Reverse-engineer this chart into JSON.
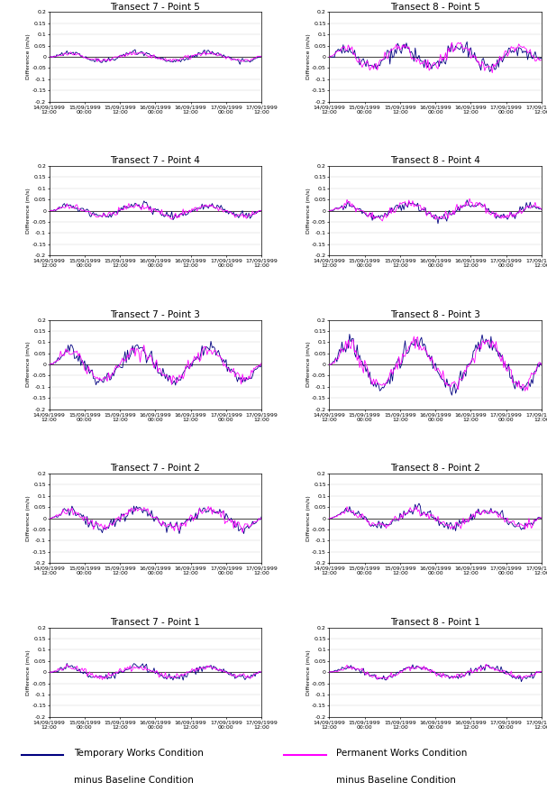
{
  "titles": [
    [
      "Transect 7 - Point 5",
      "Transect 8 - Point 5"
    ],
    [
      "Transect 7 - Point 4",
      "Transect 8 - Point 4"
    ],
    [
      "Transect 7 - Point 3",
      "Transect 8 - Point 3"
    ],
    [
      "Transect 7 - Point 2",
      "Transect 8 - Point 2"
    ],
    [
      "Transect 7 - Point 1",
      "Transect 8 - Point 1"
    ]
  ],
  "ylims": [
    [
      [
        -0.2,
        0.2
      ],
      [
        -0.2,
        0.2
      ]
    ],
    [
      [
        -0.2,
        0.2
      ],
      [
        -0.2,
        0.2
      ]
    ],
    [
      [
        -0.2,
        0.2
      ],
      [
        -0.2,
        0.2
      ]
    ],
    [
      [
        -0.2,
        0.2
      ],
      [
        -0.2,
        0.2
      ]
    ],
    [
      [
        -0.2,
        0.2
      ],
      [
        -0.2,
        0.2
      ]
    ]
  ],
  "yticks": [
    -0.2,
    -0.15,
    -0.1,
    -0.05,
    0,
    0.05,
    0.1,
    0.15,
    0.2
  ],
  "ytick_labels": [
    "-0.2",
    "-0.15",
    "-0.1",
    "-0.05",
    "0",
    "0.05",
    "0.1",
    "0.15",
    "0.2"
  ],
  "ylabel": "Difference (m/s)",
  "line_color_temp": "#000080",
  "line_color_perm": "#ff00ff",
  "background_color": "#ffffff",
  "legend_temp_line": "Temporary Works Condition",
  "legend_temp_sub": "minus Baseline Condition",
  "legend_perm_line": "Permanent Works Condition",
  "legend_perm_sub": "minus Baseline Condition",
  "title_fontsize": 7.5,
  "tick_fontsize": 4.5,
  "ylabel_fontsize": 4.5,
  "legend_fontsize": 7.5,
  "n_points": 169,
  "xtick_labels": [
    "14/09/1999\n12:00",
    "15/09/1999\n00:00",
    "15/09/1999\n12:00",
    "16/09/1999\n00:00",
    "16/09/1999\n12:00",
    "17/09/1999\n00:00",
    "17/09/1999\n12:00"
  ]
}
